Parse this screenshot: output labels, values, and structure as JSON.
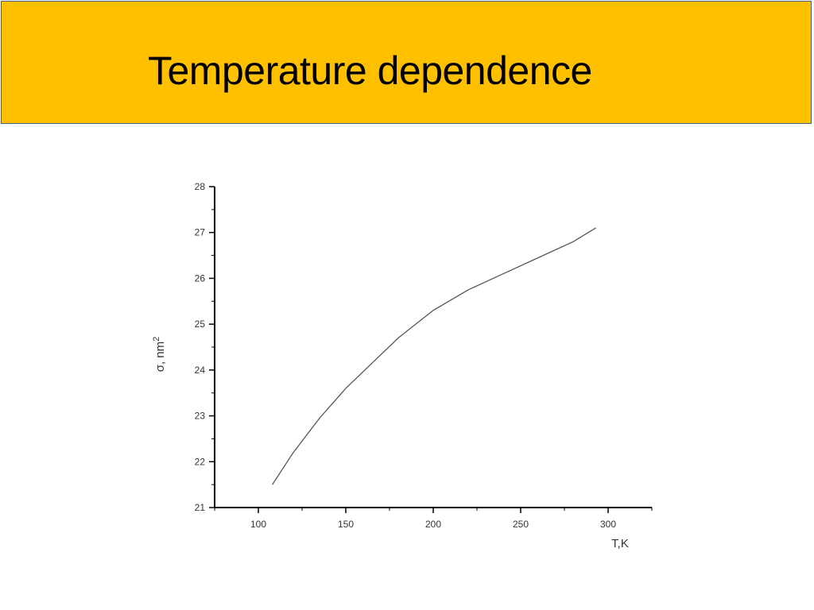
{
  "slide": {
    "title": "Temperature dependence"
  },
  "chart_data": {
    "type": "line",
    "xlabel": "T,K",
    "ylabel": "σ, nm",
    "ylabel_sup": "2",
    "xlim": [
      75,
      325
    ],
    "ylim": [
      21,
      28
    ],
    "x_ticks": [
      100,
      150,
      200,
      250,
      300
    ],
    "y_ticks": [
      21,
      22,
      23,
      24,
      25,
      26,
      27,
      28
    ],
    "grid": false,
    "series": [
      {
        "color": "#555555",
        "x": [
          108,
          120,
          135,
          150,
          165,
          180,
          200,
          220,
          240,
          260,
          280,
          293
        ],
        "y": [
          21.5,
          22.2,
          22.95,
          23.6,
          24.15,
          24.7,
          25.3,
          25.75,
          26.1,
          26.45,
          26.8,
          27.1
        ]
      }
    ]
  }
}
